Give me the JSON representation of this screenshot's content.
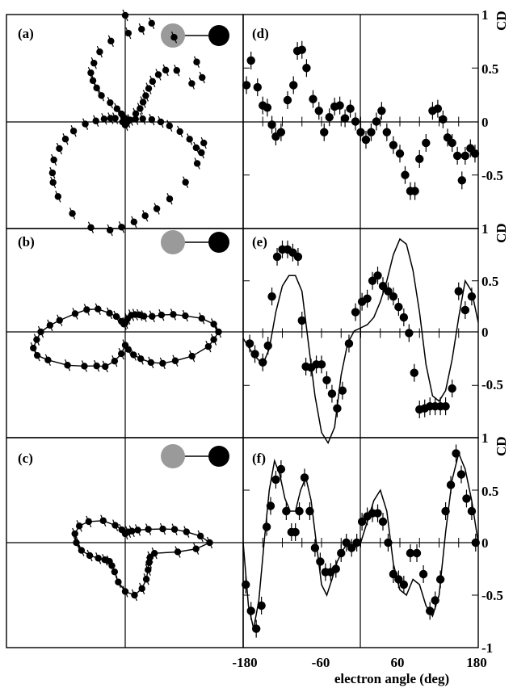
{
  "figure": {
    "x_axis_label": "electron angle (deg)",
    "y_axis_label": "CD",
    "x_tick_labels": [
      "-180",
      "-60",
      "60",
      "180"
    ],
    "y_tick_labels_top": [
      "1",
      "0.5",
      "0",
      "-0.5"
    ],
    "y_tick_labels_mid": [
      "1",
      "0.5",
      "0",
      "-0.5"
    ],
    "y_tick_labels_bottom": [
      "1",
      "0.5",
      "0",
      "-0.5",
      "-1"
    ],
    "colors": {
      "ink": "#000000",
      "grey_atom": "#9a9a9a",
      "black_atom": "#000000"
    }
  },
  "chart_data": [
    {
      "type": "scatter",
      "panel": "(a)",
      "subtype": "polar",
      "points": [
        [
          107,
          10
        ],
        [
          115,
          20
        ],
        [
          122,
          35
        ],
        [
          128,
          55
        ],
        [
          132,
          80
        ],
        [
          130,
          100
        ],
        [
          128,
          118
        ],
        [
          125,
          135
        ],
        [
          118,
          150
        ],
        [
          110,
          168
        ],
        [
          100,
          185
        ],
        [
          88,
          200
        ],
        [
          80,
          212
        ],
        [
          160,
          24
        ],
        [
          166,
          34
        ],
        [
          172,
          48
        ],
        [
          178,
          66
        ],
        [
          183,
          90
        ],
        [
          190,
          118
        ],
        [
          196,
          140
        ],
        [
          202,
          160
        ],
        [
          208,
          182
        ],
        [
          215,
          200
        ],
        [
          220,
          212
        ],
        [
          228,
          226
        ],
        [
          240,
          238
        ],
        [
          252,
          250
        ],
        [
          262,
          246
        ],
        [
          268,
          237
        ],
        [
          275,
          226
        ],
        [
          282,
          216
        ],
        [
          290,
          208
        ],
        [
          300,
          200
        ],
        [
          315,
          192
        ],
        [
          330,
          187
        ],
        [
          345,
          183
        ],
        [
          30,
          173
        ],
        [
          45,
          164
        ],
        [
          52,
          148
        ],
        [
          55,
          130
        ],
        [
          56,
          110
        ],
        [
          55,
          92
        ],
        [
          52,
          75
        ],
        [
          48,
          60
        ],
        [
          42,
          45
        ],
        [
          38,
          30
        ],
        [
          22,
          12
        ],
        [
          15,
          24
        ],
        [
          10,
          40
        ],
        [
          5,
          60
        ],
        [
          0,
          80
        ],
        [
          355,
          100
        ],
        [
          350,
          125
        ],
        [
          345,
          150
        ],
        [
          340,
          170
        ],
        [
          338,
          185
        ],
        [
          30,
          200
        ],
        [
          40,
          210
        ],
        [
          60,
          220
        ],
        [
          75,
          230
        ],
        [
          90,
          240
        ],
        [
          0,
          5
        ],
        [
          90,
          8
        ],
        [
          180,
          6
        ],
        [
          270,
          7
        ]
      ]
    },
    {
      "type": "scatter",
      "panel": "(d)",
      "x": [
        -175,
        -168,
        -158,
        -150,
        -143,
        -136,
        -130,
        -122,
        -112,
        -103,
        -97,
        -90,
        -83,
        -73,
        -64,
        -56,
        -48,
        -40,
        -32,
        -24,
        -16,
        -8,
        0,
        8,
        16,
        24,
        32,
        40,
        50,
        60,
        68,
        76,
        83,
        90,
        100,
        110,
        118,
        126,
        133,
        140,
        148,
        155,
        160,
        168,
        175
      ],
      "y": [
        0.34,
        0.57,
        0.32,
        0.15,
        0.13,
        -0.03,
        -0.14,
        -0.1,
        0.2,
        0.34,
        0.66,
        0.67,
        0.5,
        0.21,
        0.1,
        -0.1,
        0.04,
        0.14,
        0.15,
        0.03,
        0.12,
        0.0,
        -0.1,
        -0.17,
        -0.1,
        0.0,
        0.1,
        -0.1,
        -0.22,
        -0.3,
        -0.5,
        -0.65,
        -0.65,
        -0.35,
        -0.2,
        0.1,
        0.12,
        0.02,
        -0.15,
        -0.2,
        -0.32,
        -0.55,
        -0.32,
        -0.25,
        -0.3
      ],
      "ylim": [
        -1,
        1
      ],
      "xlim": [
        -180,
        180
      ]
    },
    {
      "type": "scatter",
      "panel": "(b)",
      "subtype": "polar",
      "has_fit_curve": true,
      "points": [
        [
          0,
          210
        ],
        [
          5,
          200
        ],
        [
          10,
          175
        ],
        [
          15,
          140
        ],
        [
          20,
          115
        ],
        [
          25,
          90
        ],
        [
          30,
          70
        ],
        [
          40,
          55
        ],
        [
          50,
          50
        ],
        [
          60,
          45
        ],
        [
          70,
          40
        ],
        [
          80,
          30
        ],
        [
          90,
          20
        ],
        [
          100,
          18
        ],
        [
          110,
          25
        ],
        [
          120,
          40
        ],
        [
          130,
          55
        ],
        [
          140,
          80
        ],
        [
          150,
          100
        ],
        [
          160,
          120
        ],
        [
          170,
          150
        ],
        [
          175,
          170
        ],
        [
          180,
          190
        ],
        [
          185,
          200
        ],
        [
          190,
          210
        ],
        [
          195,
          205
        ],
        [
          200,
          185
        ],
        [
          210,
          150
        ],
        [
          220,
          120
        ],
        [
          230,
          100
        ],
        [
          240,
          90
        ],
        [
          250,
          70
        ],
        [
          260,
          50
        ],
        [
          270,
          30
        ],
        [
          280,
          40
        ],
        [
          290,
          55
        ],
        [
          300,
          70
        ],
        [
          310,
          90
        ],
        [
          320,
          110
        ],
        [
          330,
          130
        ],
        [
          340,
          160
        ],
        [
          350,
          190
        ],
        [
          355,
          200
        ]
      ]
    },
    {
      "type": "line+scatter",
      "panel": "(e)",
      "x": [
        -170,
        -162,
        -150,
        -142,
        -136,
        -128,
        -120,
        -112,
        -104,
        -96,
        -90,
        -84,
        -76,
        -68,
        -60,
        -52,
        -44,
        -36,
        -28,
        -18,
        -8,
        2,
        10,
        18,
        26,
        34,
        42,
        50,
        58,
        66,
        74,
        82,
        90,
        98,
        106,
        114,
        122,
        130,
        140,
        150,
        160,
        170
      ],
      "y": [
        -0.1,
        -0.2,
        -0.28,
        -0.12,
        0.35,
        0.73,
        0.8,
        0.8,
        0.77,
        0.73,
        0.12,
        -0.32,
        -0.33,
        -0.3,
        -0.3,
        -0.45,
        -0.58,
        -0.72,
        -0.55,
        -0.1,
        0.2,
        0.3,
        0.33,
        0.5,
        0.55,
        0.45,
        0.4,
        0.35,
        0.25,
        0.15,
        0.0,
        -0.38,
        -0.73,
        -0.72,
        -0.7,
        -0.7,
        -0.7,
        -0.7,
        -0.53,
        0.4,
        0.22,
        0.35
      ],
      "fit": [
        [
          -180,
          -0.05
        ],
        [
          -165,
          -0.2
        ],
        [
          -150,
          -0.3
        ],
        [
          -140,
          -0.15
        ],
        [
          -130,
          0.2
        ],
        [
          -120,
          0.45
        ],
        [
          -110,
          0.55
        ],
        [
          -100,
          0.55
        ],
        [
          -90,
          0.4
        ],
        [
          -80,
          -0.1
        ],
        [
          -70,
          -0.6
        ],
        [
          -60,
          -0.95
        ],
        [
          -50,
          -1.05
        ],
        [
          -40,
          -0.9
        ],
        [
          -30,
          -0.4
        ],
        [
          -20,
          -0.1
        ],
        [
          -10,
          0.02
        ],
        [
          0,
          0.05
        ],
        [
          10,
          0.08
        ],
        [
          20,
          0.15
        ],
        [
          30,
          0.3
        ],
        [
          40,
          0.5
        ],
        [
          50,
          0.75
        ],
        [
          60,
          0.9
        ],
        [
          70,
          0.85
        ],
        [
          80,
          0.6
        ],
        [
          90,
          0.2
        ],
        [
          100,
          -0.3
        ],
        [
          110,
          -0.6
        ],
        [
          120,
          -0.65
        ],
        [
          130,
          -0.55
        ],
        [
          140,
          -0.25
        ],
        [
          150,
          0.15
        ],
        [
          160,
          0.5
        ],
        [
          170,
          0.4
        ],
        [
          180,
          0.1
        ]
      ],
      "ylim": [
        -1,
        1
      ],
      "xlim": [
        -180,
        180
      ]
    },
    {
      "type": "scatter",
      "panel": "(c)",
      "subtype": "polar",
      "has_fit_curve": true,
      "points": [
        [
          0,
          190
        ],
        [
          5,
          170
        ],
        [
          10,
          140
        ],
        [
          15,
          115
        ],
        [
          20,
          90
        ],
        [
          30,
          60
        ],
        [
          45,
          40
        ],
        [
          60,
          30
        ],
        [
          75,
          25
        ],
        [
          90,
          20
        ],
        [
          105,
          30
        ],
        [
          120,
          45
        ],
        [
          135,
          70
        ],
        [
          150,
          95
        ],
        [
          160,
          110
        ],
        [
          170,
          115
        ],
        [
          180,
          110
        ],
        [
          190,
          100
        ],
        [
          200,
          85
        ],
        [
          210,
          70
        ],
        [
          220,
          60
        ],
        [
          230,
          55
        ],
        [
          240,
          60
        ],
        [
          250,
          70
        ],
        [
          260,
          90
        ],
        [
          270,
          110
        ],
        [
          280,
          120
        ],
        [
          290,
          110
        ],
        [
          300,
          95
        ],
        [
          310,
          80
        ],
        [
          320,
          70
        ],
        [
          330,
          65
        ],
        [
          340,
          70
        ],
        [
          350,
          120
        ],
        [
          355,
          160
        ]
      ]
    },
    {
      "type": "line+scatter",
      "panel": "(f)",
      "x": [
        -176,
        -168,
        -160,
        -152,
        -144,
        -138,
        -130,
        -122,
        -114,
        -106,
        -100,
        -94,
        -86,
        -78,
        -70,
        -62,
        -54,
        -46,
        -38,
        -30,
        -22,
        -14,
        -6,
        2,
        10,
        18,
        26,
        34,
        42,
        50,
        58,
        66,
        76,
        86,
        96,
        106,
        114,
        122,
        130,
        138,
        146,
        154,
        162,
        170,
        176
      ],
      "y": [
        -0.4,
        -0.65,
        -0.82,
        -0.6,
        0.15,
        0.35,
        0.6,
        0.7,
        0.3,
        0.1,
        0.1,
        0.3,
        0.62,
        0.3,
        -0.05,
        -0.18,
        -0.28,
        -0.28,
        -0.25,
        -0.1,
        0.0,
        -0.05,
        0.0,
        0.2,
        0.25,
        0.28,
        0.28,
        0.2,
        0.0,
        -0.3,
        -0.35,
        -0.4,
        -0.1,
        -0.1,
        -0.3,
        -0.65,
        -0.55,
        -0.35,
        0.3,
        0.55,
        0.85,
        0.65,
        0.42,
        0.3,
        0.0
      ],
      "fit": [
        [
          -180,
          0.0
        ],
        [
          -172,
          -0.6
        ],
        [
          -164,
          -0.82
        ],
        [
          -156,
          -0.55
        ],
        [
          -148,
          0.0
        ],
        [
          -140,
          0.5
        ],
        [
          -132,
          0.78
        ],
        [
          -124,
          0.65
        ],
        [
          -116,
          0.42
        ],
        [
          -108,
          0.3
        ],
        [
          -100,
          0.3
        ],
        [
          -92,
          0.5
        ],
        [
          -84,
          0.62
        ],
        [
          -76,
          0.4
        ],
        [
          -68,
          0.0
        ],
        [
          -60,
          -0.4
        ],
        [
          -52,
          -0.5
        ],
        [
          -44,
          -0.35
        ],
        [
          -36,
          -0.18
        ],
        [
          -28,
          -0.08
        ],
        [
          -20,
          0.0
        ],
        [
          -10,
          -0.05
        ],
        [
          0,
          0.0
        ],
        [
          10,
          0.2
        ],
        [
          20,
          0.4
        ],
        [
          30,
          0.5
        ],
        [
          40,
          0.3
        ],
        [
          50,
          -0.2
        ],
        [
          60,
          -0.45
        ],
        [
          70,
          -0.5
        ],
        [
          80,
          -0.35
        ],
        [
          90,
          -0.4
        ],
        [
          100,
          -0.6
        ],
        [
          110,
          -0.7
        ],
        [
          120,
          -0.5
        ],
        [
          130,
          0.1
        ],
        [
          140,
          0.6
        ],
        [
          150,
          0.85
        ],
        [
          160,
          0.7
        ],
        [
          170,
          0.4
        ],
        [
          180,
          0.0
        ]
      ],
      "ylim": [
        -1,
        1
      ],
      "xlim": [
        -180,
        180
      ]
    }
  ]
}
